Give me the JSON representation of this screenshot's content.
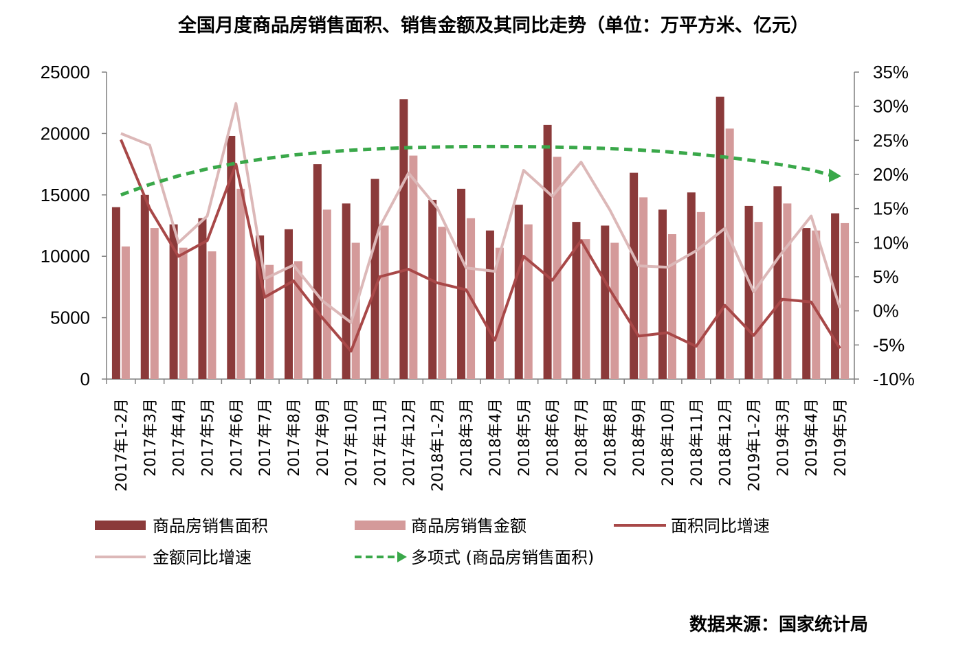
{
  "chart_data": {
    "type": "bar",
    "title": "全国月度商品房销售面积、销售金额及其同比走势（单位：万平方米、亿元）",
    "categories": [
      "2017年1-2月",
      "2017年3月",
      "2017年4月",
      "2017年5月",
      "2017年6月",
      "2017年7月",
      "2017年8月",
      "2017年9月",
      "2017年10月",
      "2017年11月",
      "2017年12月",
      "2018年1-2月",
      "2018年3月",
      "2018年4月",
      "2018年5月",
      "2018年6月",
      "2018年7月",
      "2018年8月",
      "2018年9月",
      "2018年10月",
      "2018年11月",
      "2018年12月",
      "2019年1-2月",
      "2019年3月",
      "2019年4月",
      "2019年5月"
    ],
    "y_left": {
      "ylim": [
        0,
        25000
      ],
      "ticks": [
        "0",
        "5000",
        "10000",
        "15000",
        "20000",
        "25000"
      ]
    },
    "y_right": {
      "ylim": [
        -10,
        35
      ],
      "ticks": [
        "-10%",
        "-5%",
        "0%",
        "5%",
        "10%",
        "15%",
        "20%",
        "25%",
        "30%",
        "35%"
      ]
    },
    "grid": false,
    "legend_position": "bottom",
    "series": [
      {
        "name": "商品房销售面积",
        "kind": "bar",
        "axis": "left",
        "color": "#8b3a3a",
        "values": [
          14000,
          15000,
          12600,
          13100,
          19800,
          11700,
          12200,
          17500,
          14300,
          16300,
          22800,
          14600,
          15500,
          12100,
          14200,
          20700,
          12800,
          12500,
          16800,
          13800,
          15200,
          23000,
          14100,
          15700,
          12300,
          13500
        ]
      },
      {
        "name": "商品房销售金额",
        "kind": "bar",
        "axis": "left",
        "color": "#d49a9a",
        "values": [
          10800,
          12300,
          10700,
          10400,
          15500,
          9300,
          9600,
          13800,
          11100,
          12500,
          18200,
          12400,
          13100,
          10700,
          12600,
          18100,
          11400,
          11100,
          14800,
          11800,
          13600,
          20400,
          12800,
          14300,
          12100,
          12700
        ]
      },
      {
        "name": "面积同比增速",
        "kind": "line",
        "axis": "right",
        "color": "#a84848",
        "values": [
          25.1,
          15.0,
          8.0,
          10.3,
          21.5,
          2.0,
          4.4,
          -1.0,
          -5.9,
          5.0,
          6.1,
          4.1,
          3.1,
          -4.3,
          8.0,
          4.5,
          10.3,
          3.1,
          -3.7,
          -3.2,
          -5.2,
          0.8,
          -3.6,
          1.7,
          1.3,
          -5.5
        ]
      },
      {
        "name": "金额同比增速",
        "kind": "line",
        "axis": "right",
        "color": "#dcb8b8",
        "values": [
          26.0,
          24.3,
          10.0,
          13.9,
          30.4,
          4.7,
          6.7,
          1.5,
          -1.7,
          12.3,
          20.2,
          15.1,
          6.3,
          5.8,
          20.6,
          16.8,
          21.8,
          14.8,
          6.6,
          6.4,
          8.8,
          12.1,
          2.8,
          8.6,
          13.9,
          0.4
        ]
      },
      {
        "name": "多项式 (商品房销售面积)",
        "kind": "trend",
        "axis": "left",
        "color": "#3aa84a",
        "values": [
          15000,
          15850,
          16550,
          17120,
          17580,
          17950,
          18250,
          18470,
          18640,
          18760,
          18850,
          18900,
          18930,
          18940,
          18930,
          18900,
          18850,
          18770,
          18660,
          18510,
          18320,
          18080,
          17790,
          17440,
          17040,
          16580
        ]
      }
    ]
  },
  "legend": [
    "商品房销售面积",
    "商品房销售金额",
    "面积同比增速",
    "金额同比增速",
    "多项式 (商品房销售面积)"
  ],
  "source_text": "数据来源：国家统计局"
}
